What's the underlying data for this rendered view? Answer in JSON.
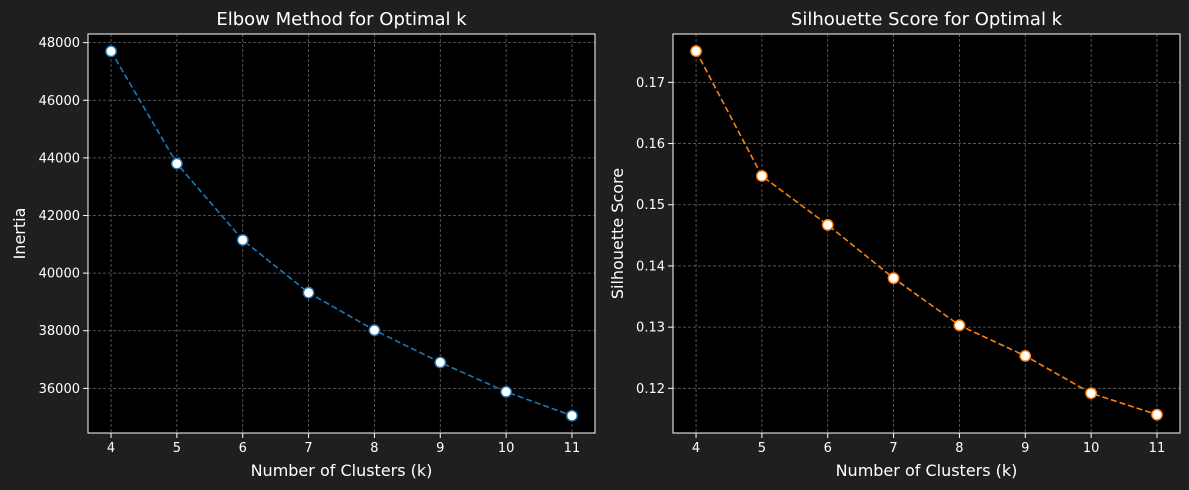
{
  "chart_data": [
    {
      "type": "line",
      "title": "Elbow Method for Optimal k",
      "xlabel": "Number of Clusters (k)",
      "ylabel": "Inertia",
      "x": [
        4,
        5,
        6,
        7,
        8,
        9,
        10,
        11
      ],
      "y": [
        47700,
        43800,
        41150,
        39320,
        38020,
        36900,
        35880,
        35050
      ],
      "xlim": [
        3.65,
        11.35
      ],
      "ylim": [
        34450,
        48300
      ],
      "xticks": [
        4,
        5,
        6,
        7,
        8,
        9,
        10,
        11
      ],
      "yticks": [
        36000,
        38000,
        40000,
        42000,
        44000,
        46000,
        48000
      ],
      "line_color": "#1f77b4",
      "line_style": "dashed",
      "marker": "circle",
      "marker_face": "#ffffff",
      "plot_background": "#000000",
      "grid": true
    },
    {
      "type": "line",
      "title": "Silhouette Score for Optimal k",
      "xlabel": "Number of Clusters (k)",
      "ylabel": "Silhouette Score",
      "x": [
        4,
        5,
        6,
        7,
        8,
        9,
        10,
        11
      ],
      "y": [
        0.1751,
        0.1547,
        0.1467,
        0.138,
        0.1303,
        0.1253,
        0.1192,
        0.1157
      ],
      "xlim": [
        3.65,
        11.35
      ],
      "ylim": [
        0.1127,
        0.1779
      ],
      "xticks": [
        4,
        5,
        6,
        7,
        8,
        9,
        10,
        11
      ],
      "yticks": [
        0.12,
        0.13,
        0.14,
        0.15,
        0.16,
        0.17
      ],
      "line_color": "#ff7f0e",
      "line_style": "dashed",
      "marker": "circle",
      "marker_face": "#ffffff",
      "plot_background": "#000000",
      "grid": true
    }
  ],
  "figure_background": "#1f1f1f",
  "grid_color": "#666666",
  "axis_color": "#ffffff"
}
